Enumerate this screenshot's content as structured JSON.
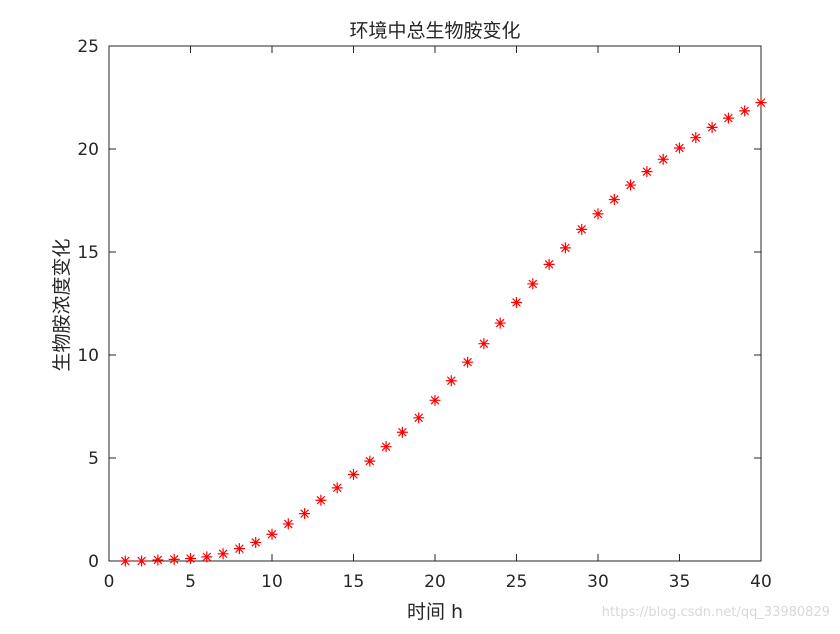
{
  "chart_data": {
    "type": "scatter",
    "title": "环境中总生物胺变化",
    "xlabel": "时间 h",
    "ylabel": "生物胺浓度变化",
    "xlim": [
      0,
      40
    ],
    "ylim": [
      0,
      25
    ],
    "xticks": [
      0,
      5,
      10,
      15,
      20,
      25,
      30,
      35,
      40
    ],
    "yticks": [
      0,
      5,
      10,
      15,
      20,
      25
    ],
    "grid": false,
    "marker": "asterisk",
    "marker_color": "#ff0000",
    "series": [
      {
        "x": [
          1,
          2,
          3,
          4,
          5,
          6,
          7,
          8,
          9,
          10,
          11,
          12,
          13,
          14,
          15,
          16,
          17,
          18,
          19,
          20,
          21,
          22,
          23,
          24,
          25,
          26,
          27,
          28,
          29,
          30,
          31,
          32,
          33,
          34,
          35,
          36,
          37,
          38,
          39,
          40
        ],
        "y": [
          0.0,
          0.0,
          0.05,
          0.08,
          0.12,
          0.2,
          0.35,
          0.6,
          0.9,
          1.3,
          1.8,
          2.3,
          2.95,
          3.55,
          4.2,
          4.85,
          5.55,
          6.25,
          6.95,
          7.8,
          8.75,
          9.65,
          10.55,
          11.55,
          12.55,
          13.45,
          14.4,
          15.2,
          16.1,
          16.85,
          17.55,
          18.25,
          18.9,
          19.5,
          20.05,
          20.55,
          21.05,
          21.5,
          21.85,
          22.25
        ]
      }
    ]
  },
  "watermark": "https://blog.csdn.net/qq_33980829"
}
